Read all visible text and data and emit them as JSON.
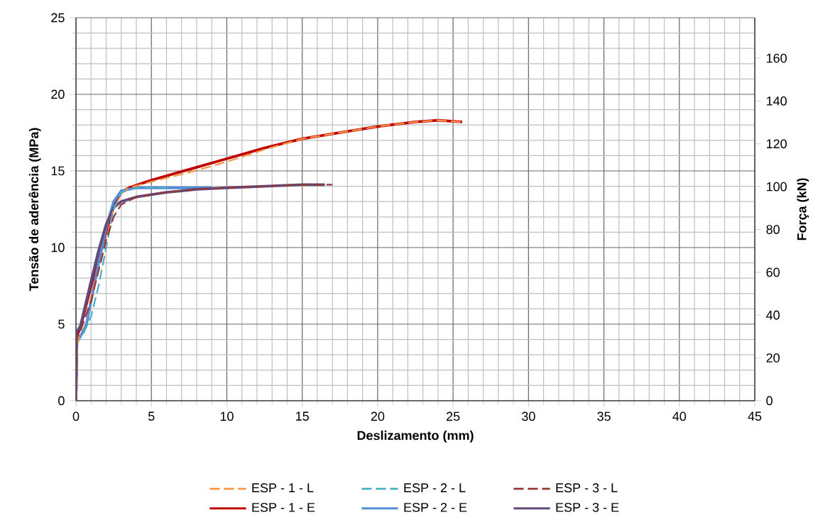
{
  "chart_data": {
    "type": "line",
    "xlabel": "Deslizamento (mm)",
    "ylabel": "Tensão de aderência (MPa)",
    "y2label": "Força (kN)",
    "xlim": [
      0,
      45
    ],
    "xticks": [
      0,
      5,
      10,
      15,
      20,
      25,
      30,
      35,
      40,
      45
    ],
    "ylim": [
      0,
      25
    ],
    "yticks": [
      0,
      5,
      10,
      15,
      20,
      25
    ],
    "y2lim": [
      0,
      178.9
    ],
    "y2ticks": [
      0,
      20,
      40,
      60,
      80,
      100,
      120,
      140,
      160
    ],
    "grid": true,
    "legend": "bottom",
    "series": [
      {
        "name": "ESP - 1 - L",
        "color": "#f79646",
        "line_style": "dashed",
        "x": [
          0,
          0.05,
          0.3,
          0.8,
          1.5,
          2,
          2.5,
          3,
          3.5,
          5,
          7.5,
          10,
          12.5,
          15,
          17.5,
          20,
          22.5,
          24,
          25.5
        ],
        "values": [
          0,
          3.5,
          4.5,
          6,
          8.5,
          10.5,
          12.5,
          13.5,
          13.9,
          14.3,
          14.9,
          15.6,
          16.4,
          17.1,
          17.5,
          17.9,
          18.2,
          18.3,
          18.2
        ]
      },
      {
        "name": "ESP - 2 - L",
        "color": "#4bacc6",
        "line_style": "dashed",
        "x": [
          0,
          0.1,
          0.5,
          1,
          1.5,
          2,
          2.5,
          3,
          4,
          6
        ],
        "values": [
          0,
          4.2,
          4.4,
          5.5,
          7.5,
          10,
          12.5,
          13.6,
          13.9,
          13.9
        ]
      },
      {
        "name": "ESP - 3 - L",
        "color": "#953735",
        "line_style": "dashed",
        "x": [
          0,
          0.05,
          0.3,
          1,
          1.5,
          2,
          2.5,
          3,
          4,
          6,
          8,
          10,
          12.5,
          15,
          17
        ],
        "values": [
          0,
          4,
          4.6,
          6.5,
          8.5,
          10.5,
          12,
          12.8,
          13.3,
          13.6,
          13.8,
          13.9,
          14.0,
          14.1,
          14.1
        ]
      },
      {
        "name": "ESP - 1 - E",
        "color": "#c00000",
        "line_style": "solid",
        "x": [
          0,
          0.05,
          0.3,
          1,
          2,
          2.5,
          3,
          3.5,
          5,
          7.5,
          10,
          12.5,
          15,
          17.5,
          20,
          22.5,
          24,
          25.6
        ],
        "values": [
          0,
          4.2,
          4.8,
          7.5,
          11,
          12.8,
          13.6,
          13.9,
          14.4,
          15.1,
          15.8,
          16.5,
          17.1,
          17.5,
          17.9,
          18.2,
          18.3,
          18.2
        ]
      },
      {
        "name": "ESP - 2 - E",
        "color": "#558ed5",
        "line_style": "solid",
        "x": [
          0,
          0.05,
          0.3,
          0.7,
          1.5,
          2,
          2.5,
          3,
          4,
          6,
          8,
          9
        ],
        "values": [
          0,
          3.8,
          4.2,
          5,
          9,
          11.3,
          13,
          13.7,
          13.9,
          13.9,
          13.9,
          13.9
        ]
      },
      {
        "name": "ESP - 3 - E",
        "color": "#604a7b",
        "line_style": "solid",
        "x": [
          0,
          0.05,
          0.3,
          1,
          1.5,
          2,
          2.5,
          3,
          4,
          6,
          8,
          10,
          12.5,
          15,
          16.5
        ],
        "values": [
          0,
          4.5,
          4.9,
          7.8,
          9.8,
          11.5,
          12.6,
          13.0,
          13.3,
          13.6,
          13.8,
          13.9,
          14.0,
          14.1,
          14.1
        ]
      }
    ]
  }
}
